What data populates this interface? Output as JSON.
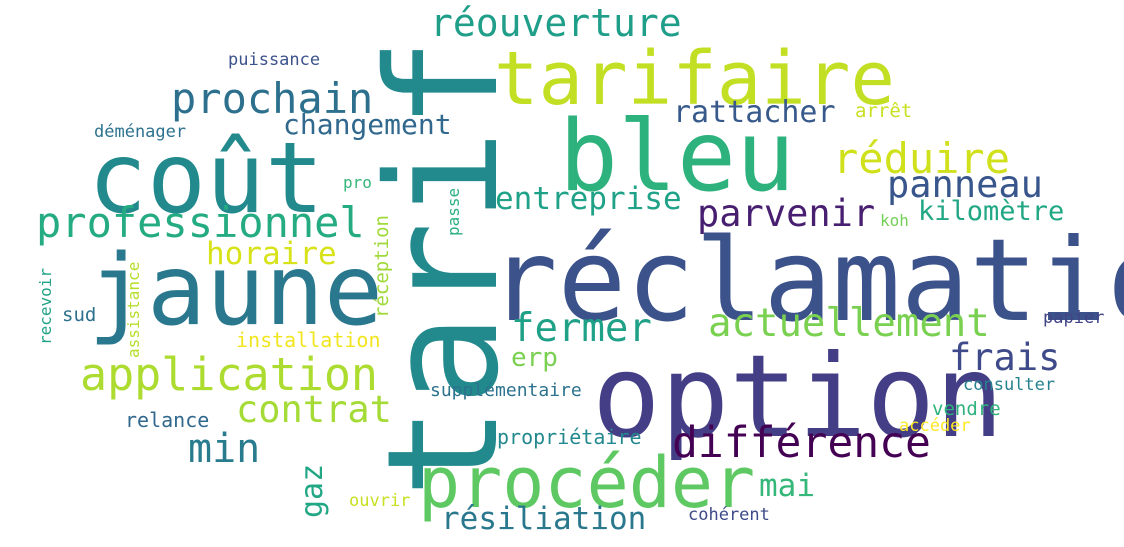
{
  "words": [
    {
      "id": "tarif",
      "text": "tarif",
      "color": "#228a8d"
    },
    {
      "id": "reclamation",
      "text": "réclamation",
      "color": "#3b528b"
    },
    {
      "id": "option",
      "text": "option",
      "color": "#433e85"
    },
    {
      "id": "bleu",
      "text": "bleu",
      "color": "#2db27d"
    },
    {
      "id": "cout",
      "text": "coût",
      "color": "#228a8d"
    },
    {
      "id": "jaune",
      "text": "jaune",
      "color": "#2a788e"
    },
    {
      "id": "tarifaire",
      "text": "tarifaire",
      "color": "#c2df23"
    },
    {
      "id": "proceder",
      "text": "procéder",
      "color": "#5ec962"
    },
    {
      "id": "application",
      "text": "application",
      "color": "#addc30"
    },
    {
      "id": "professionnel",
      "text": "professionnel",
      "color": "#25ab82"
    },
    {
      "id": "difference",
      "text": "différence",
      "color": "#440154"
    },
    {
      "id": "prochain",
      "text": "prochain",
      "color": "#2d708e"
    },
    {
      "id": "reouverture",
      "text": "réouverture",
      "color": "#1f9e89"
    },
    {
      "id": "actuellement",
      "text": "actuellement",
      "color": "#7ad151"
    },
    {
      "id": "reduire",
      "text": "réduire",
      "color": "#d0e11c"
    },
    {
      "id": "panneau",
      "text": "panneau",
      "color": "#39568c"
    },
    {
      "id": "fermer",
      "text": "fermer",
      "color": "#1fa187"
    },
    {
      "id": "contrat",
      "text": "contrat",
      "color": "#a5db36"
    },
    {
      "id": "parvenir",
      "text": "parvenir",
      "color": "#481f70"
    },
    {
      "id": "min",
      "text": "min",
      "color": "#287c8e"
    },
    {
      "id": "frais",
      "text": "frais",
      "color": "#3e4a89"
    },
    {
      "id": "changement",
      "text": "changement",
      "color": "#31688e"
    },
    {
      "id": "entreprise",
      "text": "entreprise",
      "color": "#1fa287"
    },
    {
      "id": "resiliation",
      "text": "résiliation",
      "color": "#2a788e"
    },
    {
      "id": "mai",
      "text": "mai",
      "color": "#35b779"
    },
    {
      "id": "rattacher",
      "text": "rattacher",
      "color": "#38598c"
    },
    {
      "id": "horaire",
      "text": "horaire",
      "color": "#d8e219"
    },
    {
      "id": "kilometre",
      "text": "kilomètre",
      "color": "#22a785"
    },
    {
      "id": "erp",
      "text": "erp",
      "color": "#7ad151"
    },
    {
      "id": "gaz",
      "text": "gaz",
      "color": "#22a785"
    },
    {
      "id": "installation",
      "text": "installation",
      "color": "#f1e51d"
    },
    {
      "id": "relance",
      "text": "relance",
      "color": "#31688e"
    },
    {
      "id": "supplementaire",
      "text": "supplémentaire",
      "color": "#2c728e"
    },
    {
      "id": "proprietaire",
      "text": "propriétaire",
      "color": "#23898e"
    },
    {
      "id": "puissance",
      "text": "puissance",
      "color": "#3b528b"
    },
    {
      "id": "demenager",
      "text": "déménager",
      "color": "#2c728e"
    },
    {
      "id": "pro",
      "text": "pro",
      "color": "#35b779"
    },
    {
      "id": "passe",
      "text": "passe",
      "color": "#29af7f"
    },
    {
      "id": "reception",
      "text": "réception",
      "color": "#a0da39"
    },
    {
      "id": "assistance",
      "text": "assistance",
      "color": "#b5de2b"
    },
    {
      "id": "recevoir",
      "text": "recevoir",
      "color": "#20a386"
    },
    {
      "id": "sud",
      "text": "sud",
      "color": "#2d708e"
    },
    {
      "id": "arret",
      "text": "arrêt",
      "color": "#c8e020"
    },
    {
      "id": "koh",
      "text": "koh",
      "color": "#73d056"
    },
    {
      "id": "papier",
      "text": "papier",
      "color": "#414487"
    },
    {
      "id": "consulter",
      "text": "consulter",
      "color": "#26828e"
    },
    {
      "id": "vendre",
      "text": "vendre",
      "color": "#2eb37c"
    },
    {
      "id": "acceder",
      "text": "accéder",
      "color": "#fde725"
    },
    {
      "id": "ouvrir",
      "text": "ouvrir",
      "color": "#c8e020"
    },
    {
      "id": "coherent",
      "text": "cohérent",
      "color": "#3e4a89"
    }
  ]
}
